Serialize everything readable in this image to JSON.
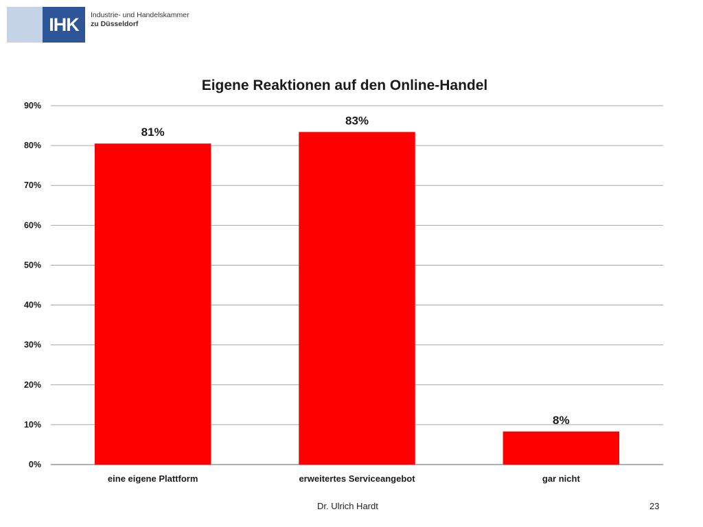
{
  "logo": {
    "mark": "IHK",
    "line1": "Industrie- und Handelskammer",
    "line2": "zu Düsseldorf"
  },
  "footer": {
    "author": "Dr. Ulrich Hardt",
    "page": "23"
  },
  "chart_data": {
    "type": "bar",
    "title": "Eigene Reaktionen auf den Online-Handel",
    "xlabel": "",
    "ylabel": "",
    "categories": [
      "eine eigene Plattform",
      "erweitertes Serviceangebot",
      "gar nicht"
    ],
    "values": [
      0.805,
      0.834,
      0.083
    ],
    "data_labels": [
      "81%",
      "83%",
      "8%"
    ],
    "ylim": [
      0,
      0.9
    ],
    "yticks": [
      0,
      0.1,
      0.2,
      0.3,
      0.4,
      0.5,
      0.6,
      0.7,
      0.8,
      0.9
    ],
    "ytick_labels": [
      "0%",
      "10%",
      "20%",
      "30%",
      "40%",
      "50%",
      "60%",
      "70%",
      "80%",
      "90%"
    ],
    "bar_color": "#ff0000",
    "grid": true,
    "legend": "none"
  }
}
